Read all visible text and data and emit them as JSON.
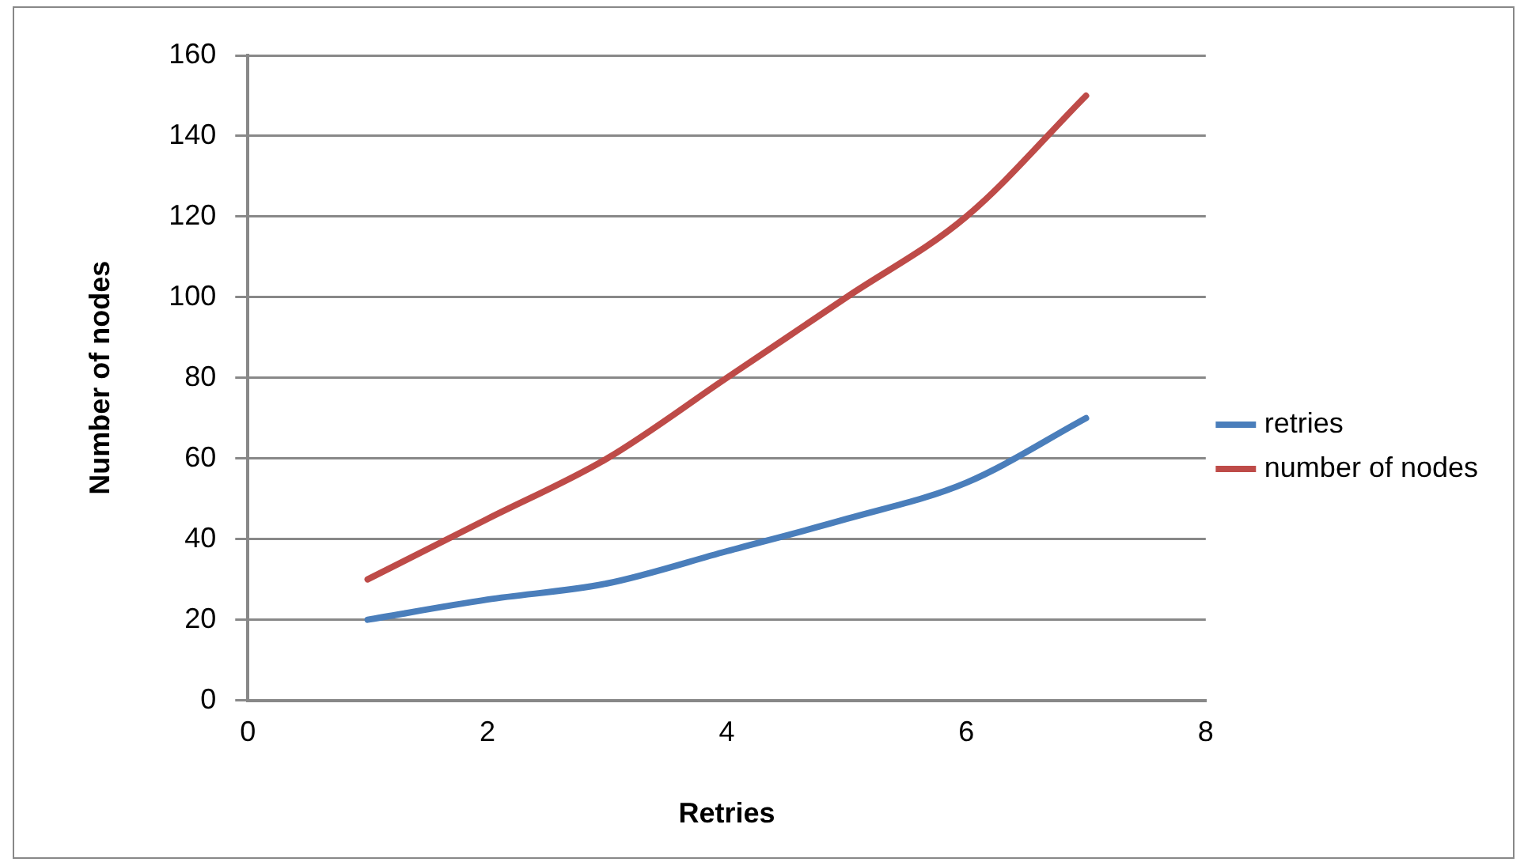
{
  "chart_data": {
    "type": "line",
    "xlabel": "Retries",
    "ylabel": "Number of nodes",
    "x": [
      1,
      2,
      3,
      4,
      5,
      6,
      7
    ],
    "series": [
      {
        "name": "retries",
        "color": "#4a7ebb",
        "values": [
          20,
          25,
          29,
          37,
          45,
          54,
          70
        ]
      },
      {
        "name": "number of nodes",
        "color": "#be4b48",
        "values": [
          30,
          45,
          60,
          80,
          100,
          120,
          150
        ]
      }
    ],
    "xlim": [
      0,
      8
    ],
    "xticks": [
      0,
      2,
      4,
      6,
      8
    ],
    "ylim": [
      0,
      160
    ],
    "yticks": [
      0,
      20,
      40,
      60,
      80,
      100,
      120,
      140,
      160
    ],
    "grid": "y",
    "legend": "right",
    "marker": "none",
    "line_style": "solid"
  }
}
